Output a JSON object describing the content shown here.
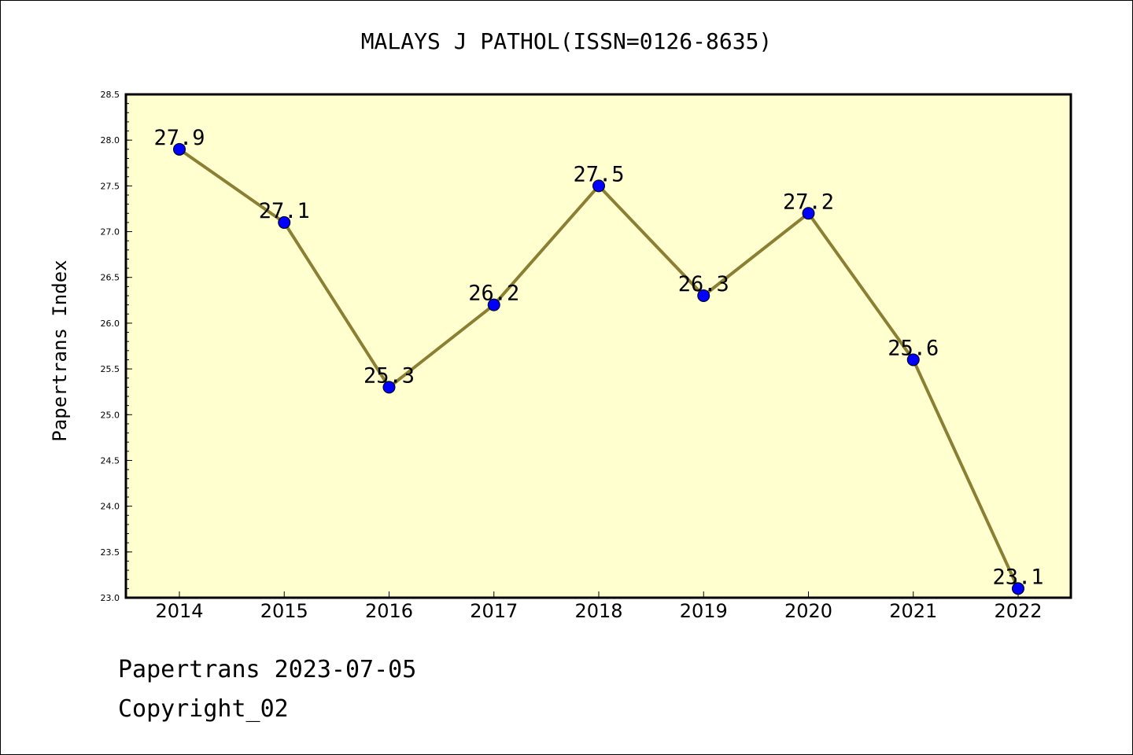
{
  "chart_data": {
    "type": "line",
    "title": "MALAYS J PATHOL(ISSN=0126-8635)",
    "xlabel": "",
    "ylabel": "Papertrans Index",
    "categories": [
      "2014",
      "2015",
      "2016",
      "2017",
      "2018",
      "2019",
      "2020",
      "2021",
      "2022"
    ],
    "values": [
      27.9,
      27.1,
      25.3,
      26.2,
      27.5,
      26.3,
      27.2,
      25.6,
      23.1
    ],
    "data_labels": [
      "27.9",
      "27.1",
      "25.3",
      "26.2",
      "27.5",
      "26.3",
      "27.2",
      "25.6",
      "23.1"
    ],
    "ylim": [
      23.0,
      28.5
    ],
    "yticks": [
      "23.0",
      "23.5",
      "24.0",
      "24.5",
      "25.0",
      "25.5",
      "26.0",
      "26.5",
      "27.0",
      "27.5",
      "28.0",
      "28.5"
    ],
    "grid": false,
    "colors": {
      "plot_background": "#FFFFD0",
      "line": "#8B7F33",
      "marker": "#0000FF"
    }
  },
  "footer": {
    "line1": "Papertrans 2023-07-05",
    "line2": "Copyright_02"
  }
}
